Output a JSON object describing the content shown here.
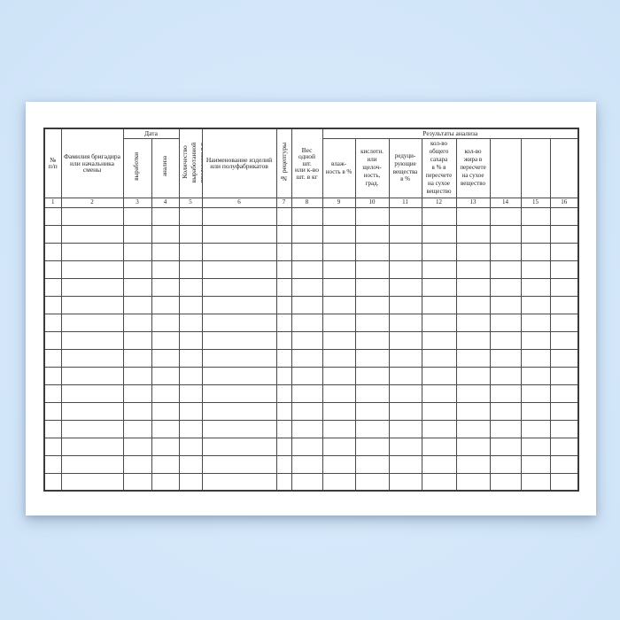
{
  "colors": {
    "background_blue": "#d6e9fb",
    "paper_white": "#ffffff",
    "grid_line": "#4a4a4a",
    "text": "#1c1c1c"
  },
  "document": {
    "kind": "blank-journal-form",
    "data_row_count": 16
  },
  "table": {
    "group_headers": {
      "date": "Дата",
      "results": "Результаты анализа"
    },
    "data_row_count": 16,
    "columns": [
      {
        "num": "1",
        "label": "№\nп/п",
        "rotated": false
      },
      {
        "num": "2",
        "label": "Фамилия бригадира\nили начальника\nсмены",
        "rotated": false
      },
      {
        "num": "3",
        "label": "выработки",
        "rotated": true,
        "group": "date"
      },
      {
        "num": "4",
        "label": "анализа",
        "rotated": true,
        "group": "date"
      },
      {
        "num": "5",
        "label": "Количество\nвыработанной\nпродукции в т.",
        "rotated": true
      },
      {
        "num": "6",
        "label": "Наименование изделий\nили полуфабрикатов",
        "rotated": false
      },
      {
        "num": "7",
        "label": "№ рецептуры",
        "rotated": true
      },
      {
        "num": "8",
        "label": "Вес\nодной\nшт.\nили к-во\nшт. в кг",
        "rotated": false
      },
      {
        "num": "9",
        "label": "влаж-\nность в %",
        "rotated": false,
        "group": "results"
      },
      {
        "num": "10",
        "label": "кислотн.\nили\nщелоч-\nность,\nград.",
        "rotated": false,
        "group": "results"
      },
      {
        "num": "11",
        "label": "редуци-\nрующие\nвещества\nв %",
        "rotated": false,
        "group": "results"
      },
      {
        "num": "12",
        "label": "кол-во\nобщего\nсахара\nв % в\nпересчете\nна сухое\nвещество",
        "rotated": false,
        "group": "results"
      },
      {
        "num": "13",
        "label": "кол-во\nжира в\nпересчете\nна сухое\nвещество",
        "rotated": false,
        "group": "results"
      },
      {
        "num": "14",
        "label": "",
        "group": "results"
      },
      {
        "num": "15",
        "label": "",
        "group": "results"
      },
      {
        "num": "16",
        "label": "",
        "group": "results"
      }
    ]
  }
}
